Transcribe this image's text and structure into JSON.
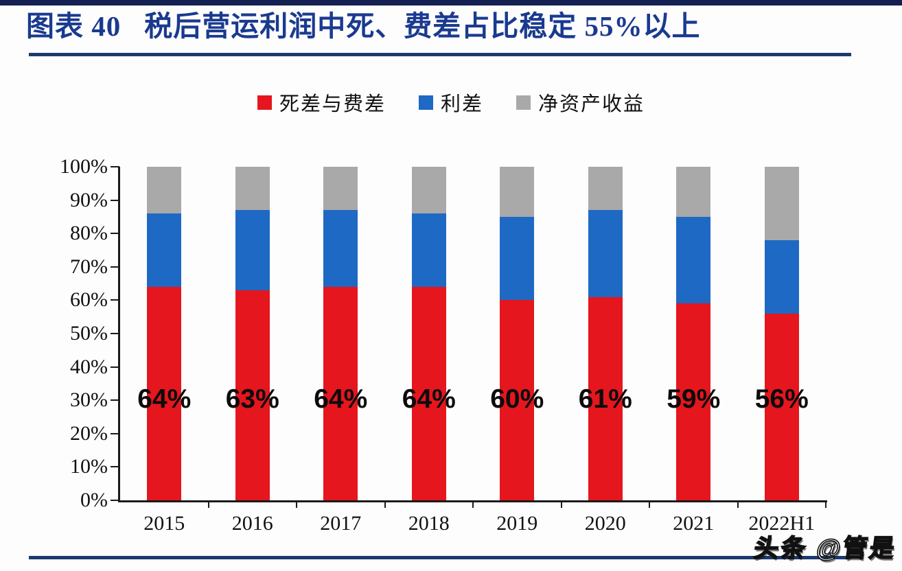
{
  "page": {
    "background": "#fdfdfe",
    "top_bar_color": "#141f52",
    "rule_color": "#1b3a71"
  },
  "header": {
    "chart_label": "图表 40",
    "title": "税后营运利润中死、费差占比稳定 55%以上",
    "title_color": "#1a3a8f"
  },
  "watermark": {
    "text": "头条 @管是"
  },
  "chart_data": {
    "type": "bar",
    "stacked": true,
    "grid": false,
    "legend_position": "top",
    "categories": [
      "2015",
      "2016",
      "2017",
      "2018",
      "2019",
      "2020",
      "2021",
      "2022H1"
    ],
    "series": [
      {
        "name": "死差与费差",
        "color": "#e5161d",
        "values": [
          64,
          63,
          64,
          64,
          60,
          61,
          59,
          56
        ]
      },
      {
        "name": "利差",
        "color": "#1e69c3",
        "values": [
          22,
          24,
          23,
          22,
          25,
          26,
          26,
          22
        ]
      },
      {
        "name": "净资产收益",
        "color": "#a9a9a9",
        "values": [
          14,
          13,
          13,
          14,
          15,
          13,
          15,
          22
        ]
      }
    ],
    "bar_labels": [
      "64%",
      "63%",
      "64%",
      "64%",
      "60%",
      "61%",
      "59%",
      "56%"
    ],
    "y_ticks": [
      "100%",
      "90%",
      "80%",
      "70%",
      "60%",
      "50%",
      "40%",
      "30%",
      "20%",
      "10%",
      "0%"
    ],
    "ylim": [
      0,
      100
    ],
    "ylabel": "",
    "xlabel": ""
  }
}
